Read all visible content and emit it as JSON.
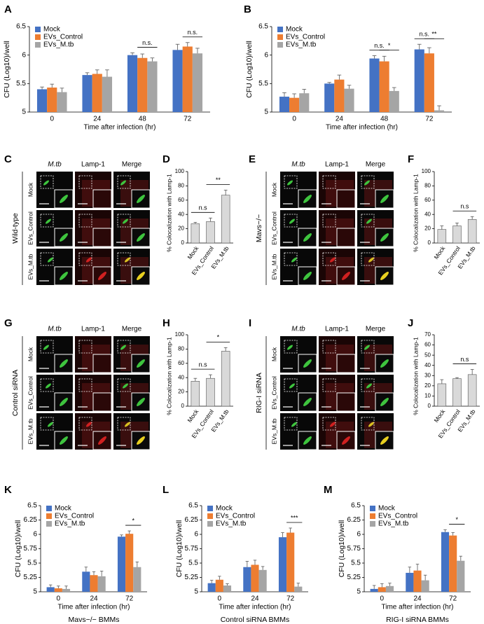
{
  "chart_data": [
    {
      "type": "bar",
      "label": "A",
      "ylabel": "CFU (Log10)/well",
      "xlabel": "Time after infection (hr)",
      "categories": [
        "0",
        "24",
        "48",
        "72"
      ],
      "ylim": [
        5,
        6.5
      ],
      "yticks": [
        5,
        5.5,
        6,
        6.5
      ],
      "legend": "upper left",
      "series": [
        {
          "name": "Mock",
          "color": "#4472c4",
          "values": [
            5.4,
            5.65,
            6.0,
            6.09
          ],
          "errors": [
            0.04,
            0.04,
            0.04,
            0.1
          ]
        },
        {
          "name": "EVs_Control",
          "color": "#ed7d31",
          "values": [
            5.43,
            5.67,
            5.95,
            6.15
          ],
          "errors": [
            0.06,
            0.07,
            0.07,
            0.07
          ]
        },
        {
          "name": "EVs_M.tb",
          "color": "#a5a5a5",
          "values": [
            5.35,
            5.62,
            5.89,
            6.03
          ],
          "errors": [
            0.07,
            0.12,
            0.06,
            0.09
          ]
        }
      ],
      "annotations": [
        {
          "text": "n.s.",
          "category": "48",
          "between": [
            "EVs_Control",
            "EVs_M.tb"
          ]
        },
        {
          "text": "n.s.",
          "category": "72",
          "between": [
            "EVs_Control",
            "EVs_M.tb"
          ]
        }
      ]
    },
    {
      "type": "bar",
      "label": "B",
      "ylabel": "CFU (Log10)/well",
      "xlabel": "Time after infection (hr)",
      "categories": [
        "0",
        "24",
        "48",
        "72"
      ],
      "ylim": [
        5,
        6.5
      ],
      "yticks": [
        5,
        5.5,
        6,
        6.5
      ],
      "legend": "upper left",
      "series": [
        {
          "name": "Mock",
          "color": "#4472c4",
          "values": [
            5.27,
            5.5,
            5.94,
            6.1
          ],
          "errors": [
            0.07,
            0.02,
            0.05,
            0.09
          ]
        },
        {
          "name": "EVs_Control",
          "color": "#ed7d31",
          "values": [
            5.25,
            5.57,
            5.89,
            6.03
          ],
          "errors": [
            0.07,
            0.08,
            0.09,
            0.1
          ]
        },
        {
          "name": "EVs_M.tb",
          "color": "#a5a5a5",
          "values": [
            5.33,
            5.41,
            5.37,
            5.03
          ],
          "errors": [
            0.07,
            0.06,
            0.06,
            0.08
          ]
        }
      ],
      "annotations": [
        {
          "text": "n.s.",
          "category": "48",
          "between": [
            "Mock",
            "EVs_Control"
          ]
        },
        {
          "text": "*",
          "category": "48",
          "between": [
            "EVs_Control",
            "EVs_M.tb"
          ]
        },
        {
          "text": "n.s.",
          "category": "72",
          "between": [
            "Mock",
            "EVs_Control"
          ]
        },
        {
          "text": "**",
          "category": "72",
          "between": [
            "EVs_Control",
            "EVs_M.tb"
          ]
        }
      ]
    },
    {
      "type": "bar",
      "label": "D",
      "ylabel": "% Colocalization with Lamp-1",
      "categories": [
        "Mock",
        "EVs_Control",
        "EVs_M.tb"
      ],
      "values": [
        27,
        30,
        67
      ],
      "errors": [
        2,
        5,
        7
      ],
      "color": "#d9d9d9",
      "ylim": [
        0,
        100
      ],
      "yticks": [
        0,
        20,
        40,
        60,
        80,
        100
      ],
      "annotations": [
        {
          "text": "n.s",
          "between": [
            "Mock",
            "EVs_Control"
          ]
        },
        {
          "text": "**",
          "between": [
            "EVs_Control",
            "EVs_M.tb"
          ]
        }
      ]
    },
    {
      "type": "bar",
      "label": "F",
      "ylabel": "% Colocalization with Lamp-1",
      "categories": [
        "Mock",
        "EVs_Control",
        "EVs_M.tb"
      ],
      "values": [
        19,
        24,
        33
      ],
      "errors": [
        5,
        4,
        4
      ],
      "color": "#d9d9d9",
      "ylim": [
        0,
        100
      ],
      "yticks": [
        0,
        20,
        40,
        60,
        80,
        100
      ],
      "annotations": [
        {
          "text": "n.s",
          "between": [
            "EVs_Control",
            "EVs_M.tb"
          ]
        }
      ]
    },
    {
      "type": "bar",
      "label": "H",
      "ylabel": "% Colocalization with Lamp-1",
      "categories": [
        "Mock",
        "EVs_Control",
        "EVs_M.tb"
      ],
      "values": [
        35,
        39,
        77
      ],
      "errors": [
        4,
        5,
        5
      ],
      "color": "#d9d9d9",
      "ylim": [
        0,
        100
      ],
      "yticks": [
        0,
        20,
        40,
        60,
        80,
        100
      ],
      "annotations": [
        {
          "text": "n.s",
          "between": [
            "Mock",
            "EVs_Control"
          ]
        },
        {
          "text": "*",
          "between": [
            "EVs_Control",
            "EVs_M.tb"
          ]
        }
      ]
    },
    {
      "type": "bar",
      "label": "J",
      "ylabel": "% Colocalization with Lamp-1",
      "categories": [
        "Mock",
        "EVs_Control",
        "EVs_M.tb"
      ],
      "values": [
        22,
        27,
        31
      ],
      "errors": [
        4,
        1,
        5
      ],
      "color": "#d9d9d9",
      "ylim": [
        0,
        70
      ],
      "yticks": [
        0,
        10,
        20,
        30,
        40,
        50,
        60,
        70
      ],
      "annotations": [
        {
          "text": "n.s",
          "between": [
            "EVs_Control",
            "EVs_M.tb"
          ]
        }
      ]
    },
    {
      "type": "bar",
      "label": "K",
      "ylabel": "CFU (Log10)/well",
      "xlabel": "Time after infection (hr)",
      "caption": "Mavs−/− BMMs",
      "categories": [
        "0",
        "24",
        "72"
      ],
      "ylim": [
        5,
        6.5
      ],
      "yticks": [
        5,
        5.25,
        5.5,
        5.75,
        6,
        6.25,
        6.5
      ],
      "legend": "upper left",
      "series": [
        {
          "name": "Mock",
          "color": "#4472c4",
          "values": [
            5.08,
            5.35,
            5.96
          ],
          "errors": [
            0.04,
            0.08,
            0.03
          ]
        },
        {
          "name": "EVs_Control",
          "color": "#ed7d31",
          "values": [
            5.06,
            5.29,
            6.01
          ],
          "errors": [
            0.04,
            0.06,
            0.05
          ]
        },
        {
          "name": "EVs_M.tb",
          "color": "#a5a5a5",
          "values": [
            5.05,
            5.27,
            5.43
          ],
          "errors": [
            0.05,
            0.09,
            0.09
          ]
        }
      ],
      "annotations": [
        {
          "text": "*",
          "category": "72",
          "between": [
            "EVs_Control",
            "EVs_M.tb"
          ]
        }
      ]
    },
    {
      "type": "bar",
      "label": "L",
      "ylabel": "CFU (Log10)/well",
      "xlabel": "Time after infection (hr)",
      "caption": "Control siRNA BMMs",
      "categories": [
        "0",
        "24",
        "72"
      ],
      "ylim": [
        5,
        6.5
      ],
      "yticks": [
        5,
        5.25,
        5.5,
        5.75,
        6,
        6.25,
        6.5
      ],
      "legend": "upper left",
      "series": [
        {
          "name": "Mock",
          "color": "#4472c4",
          "values": [
            5.15,
            5.43,
            5.95
          ],
          "errors": [
            0.05,
            0.1,
            0.08
          ]
        },
        {
          "name": "EVs_Control",
          "color": "#ed7d31",
          "values": [
            5.21,
            5.47,
            6.03
          ],
          "errors": [
            0.06,
            0.08,
            0.08
          ]
        },
        {
          "name": "EVs_M.tb",
          "color": "#a5a5a5",
          "values": [
            5.11,
            5.38,
            5.09
          ],
          "errors": [
            0.03,
            0.06,
            0.06
          ]
        }
      ],
      "annotations": [
        {
          "text": "***",
          "category": "72",
          "between": [
            "EVs_Control",
            "EVs_M.tb"
          ]
        }
      ]
    },
    {
      "type": "bar",
      "label": "M",
      "ylabel": "CFU (Log10)/well",
      "xlabel": "Time after infection (hr)",
      "caption": "RIG-I siRNA BMMs",
      "categories": [
        "0",
        "24",
        "72"
      ],
      "ylim": [
        5,
        6.5
      ],
      "yticks": [
        5,
        5.25,
        5.5,
        5.75,
        6,
        6.25,
        6.5
      ],
      "legend": "upper left",
      "series": [
        {
          "name": "Mock",
          "color": "#4472c4",
          "values": [
            5.05,
            5.33,
            6.04
          ],
          "errors": [
            0.06,
            0.1,
            0.04
          ]
        },
        {
          "name": "EVs_Control",
          "color": "#ed7d31",
          "values": [
            5.08,
            5.37,
            5.98
          ],
          "errors": [
            0.06,
            0.11,
            0.05
          ]
        },
        {
          "name": "EVs_M.tb",
          "color": "#a5a5a5",
          "values": [
            5.1,
            5.2,
            5.54
          ],
          "errors": [
            0.05,
            0.09,
            0.08
          ]
        }
      ],
      "annotations": [
        {
          "text": "*",
          "category": "72",
          "between": [
            "EVs_Control",
            "EVs_M.tb"
          ]
        }
      ]
    }
  ],
  "image_panels": [
    {
      "label": "C",
      "condition": "Wild-type",
      "columns": [
        "M.tb",
        "Lamp-1",
        "Merge"
      ],
      "rows": [
        "Mock",
        "EVs_Control",
        "EVs_M.tb"
      ]
    },
    {
      "label": "E",
      "condition": "Mavs−/−",
      "columns": [
        "M.tb",
        "Lamp-1",
        "Merge"
      ],
      "rows": [
        "Mock",
        "EVs_Control",
        "EVs_M.tb"
      ]
    },
    {
      "label": "G",
      "condition": "Control siRNA",
      "columns": [
        "M.tb",
        "Lamp-1",
        "Merge"
      ],
      "rows": [
        "Mock",
        "EVs_Control",
        "EVs_M.tb"
      ]
    },
    {
      "label": "I",
      "condition": "RIG-I siRNA",
      "columns": [
        "M.tb",
        "Lamp-1",
        "Merge"
      ],
      "rows": [
        "Mock",
        "EVs_Control",
        "EVs_M.tb"
      ]
    }
  ]
}
